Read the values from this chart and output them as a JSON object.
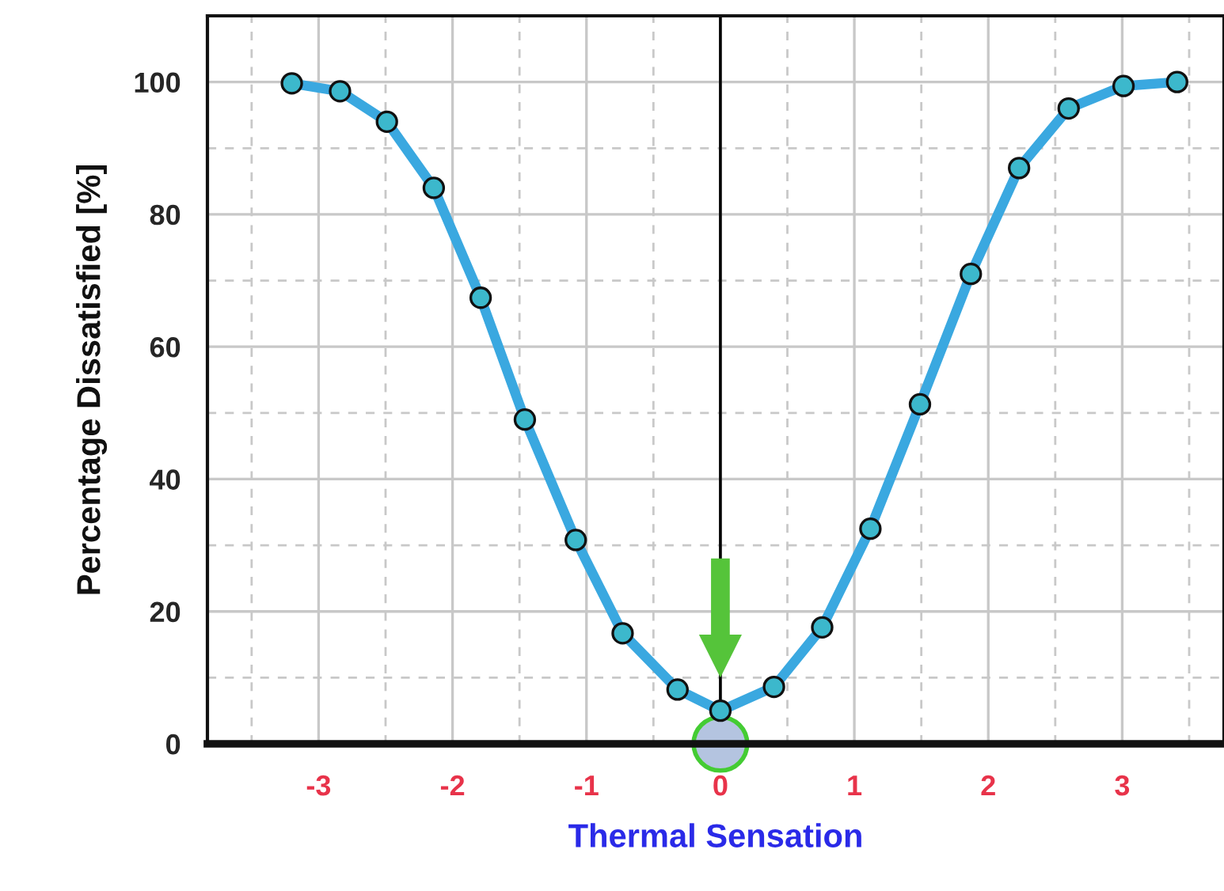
{
  "chart_data": {
    "type": "line",
    "xlabel": "Thermal Sensation",
    "ylabel": "Percentage Dissatisfied [%]",
    "series": [
      {
        "color": "#3aa8e0",
        "x": [
          -3.2,
          -2.84,
          -2.49,
          -2.14,
          -1.79,
          -1.46,
          -1.08,
          -0.73,
          -0.32,
          0,
          0.4,
          0.76,
          1.12,
          1.49,
          1.87,
          2.23,
          2.6,
          3.01,
          3.41
        ],
        "values": [
          99.8,
          98.6,
          94,
          84,
          67.4,
          49,
          30.8,
          16.7,
          8.2,
          5,
          8.6,
          17.6,
          32.5,
          51.3,
          71,
          87,
          96,
          99.4,
          100
        ]
      }
    ],
    "xlim": [
      -3.83,
      3.76
    ],
    "ylim": [
      0,
      110
    ],
    "xticks": [
      -3,
      -2,
      -1,
      0,
      1,
      2,
      3
    ],
    "yticks": [
      0,
      20,
      40,
      60,
      80,
      100
    ],
    "grid": true,
    "marker": "circle",
    "line_style": "solid",
    "ref_lines": [
      {
        "axis": "x",
        "value": 0,
        "color": "#000000"
      }
    ]
  }
}
